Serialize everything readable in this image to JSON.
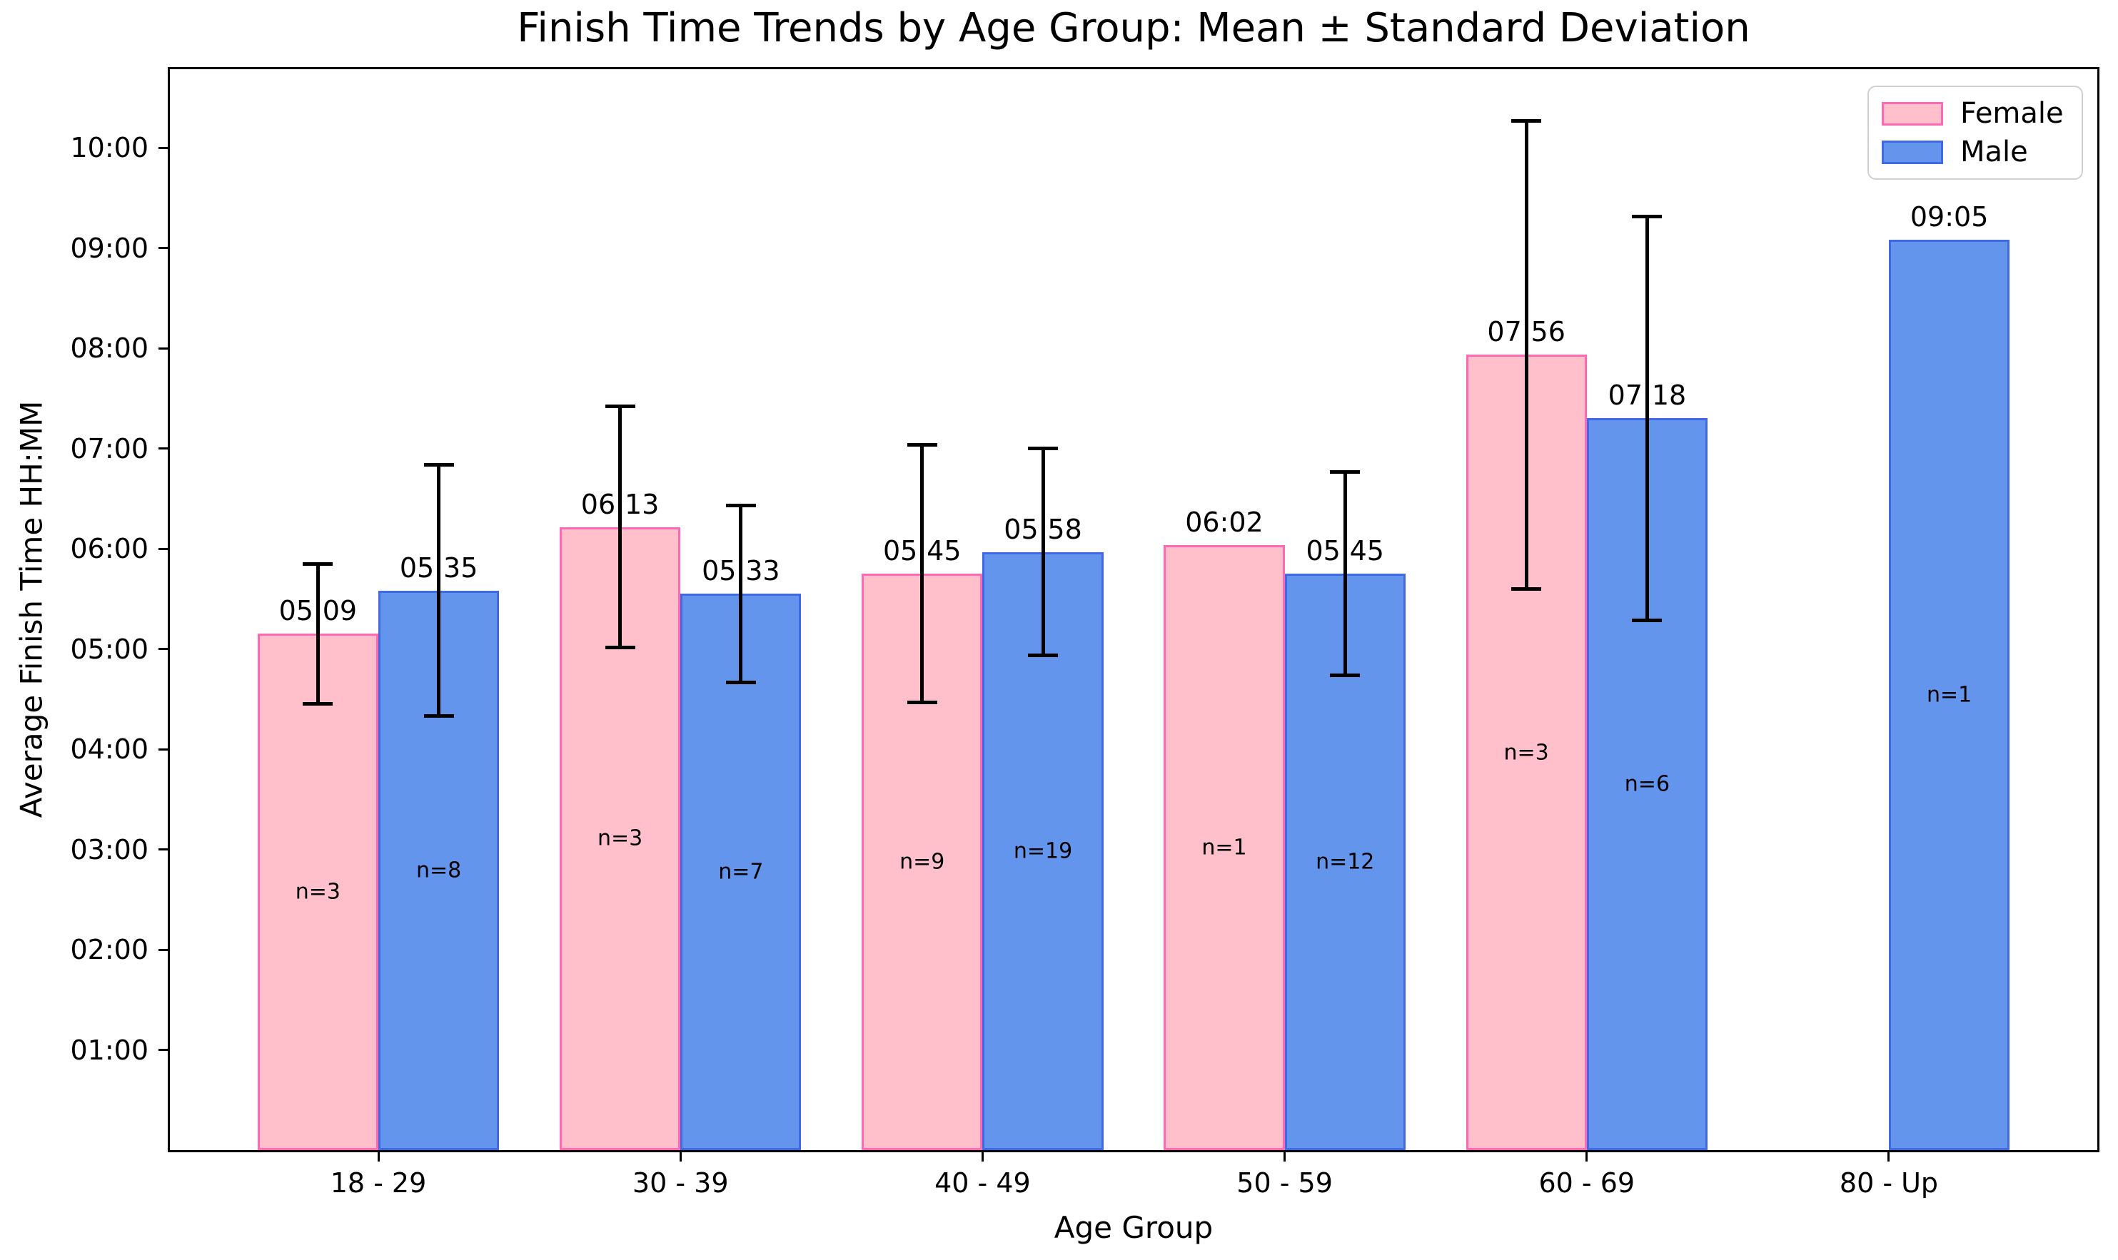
{
  "chart_data": {
    "type": "bar",
    "title": "Finish Time Trends by Age Group: Mean ± Standard Deviation",
    "xlabel": "Age Group",
    "ylabel": "Average Finish Time HH:MM",
    "categories": [
      "18 - 29",
      "30 - 39",
      "40 - 49",
      "50 - 59",
      "60 - 69",
      "80 - Up"
    ],
    "y_axis": {
      "unit": "HH:MM",
      "tick_labels": [
        "01:00",
        "02:00",
        "03:00",
        "04:00",
        "05:00",
        "06:00",
        "07:00",
        "08:00",
        "09:00",
        "10:00"
      ],
      "tick_minutes": [
        60,
        120,
        180,
        240,
        300,
        360,
        420,
        480,
        540,
        600
      ],
      "ylim_minutes": [
        0,
        647
      ]
    },
    "series": [
      {
        "name": "Female",
        "fill": "#FFC0CB",
        "edge": "#FF69B4",
        "points": [
          {
            "label": "05:09",
            "mean_minutes": 309,
            "sd_minutes": 42,
            "n": 3
          },
          {
            "label": "06:13",
            "mean_minutes": 373,
            "sd_minutes": 72,
            "n": 3
          },
          {
            "label": "05:45",
            "mean_minutes": 345,
            "sd_minutes": 77,
            "n": 9
          },
          {
            "label": "06:02",
            "mean_minutes": 362,
            "sd_minutes": 0,
            "n": 1
          },
          {
            "label": "07:56",
            "mean_minutes": 476,
            "sd_minutes": 140,
            "n": 3
          },
          null
        ]
      },
      {
        "name": "Male",
        "fill": "#6495ED",
        "edge": "#4169E1",
        "points": [
          {
            "label": "05:35",
            "mean_minutes": 335,
            "sd_minutes": 75,
            "n": 8
          },
          {
            "label": "05:33",
            "mean_minutes": 333,
            "sd_minutes": 53,
            "n": 7
          },
          {
            "label": "05:58",
            "mean_minutes": 358,
            "sd_minutes": 62,
            "n": 19
          },
          {
            "label": "05:45",
            "mean_minutes": 345,
            "sd_minutes": 61,
            "n": 12
          },
          {
            "label": "07:18",
            "mean_minutes": 438,
            "sd_minutes": 121,
            "n": 6
          },
          {
            "label": "09:05",
            "mean_minutes": 545,
            "sd_minutes": 0,
            "n": 1
          }
        ]
      }
    ],
    "legend": {
      "position": "upper right",
      "entries": [
        "Female",
        "Male"
      ]
    },
    "layout": {
      "xlim_units": [
        -0.69,
        5.69
      ],
      "bar_width_units": 0.4,
      "grid": false,
      "n_label_format": "n=",
      "axis_color": "#000000",
      "legend_border_color": "#d0d0d0",
      "background": "#ffffff"
    }
  }
}
